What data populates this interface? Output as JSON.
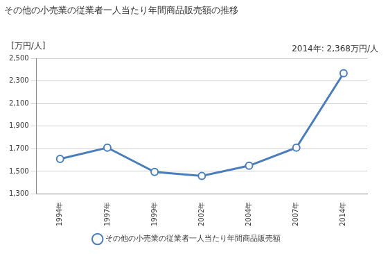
{
  "chart_data": {
    "type": "line",
    "title": "その他の小売業の従業者一人当たり年間商品販売額の推移",
    "y_label": "[万円/人]",
    "annotation": "2014年: 2,368万円/人",
    "categories": [
      "1994年",
      "1997年",
      "1999年",
      "2002年",
      "2004年",
      "2007年",
      "2014年"
    ],
    "series": [
      {
        "name": "その他の小売業の従業者一人当たり年間商品販売額",
        "color": "#4a7ebb",
        "marker": "circle",
        "values": [
          1610,
          1710,
          1495,
          1460,
          1550,
          1710,
          2368
        ]
      }
    ],
    "ylim": [
      1300,
      2500
    ],
    "yticks": [
      {
        "value": 1300,
        "label": "1,300"
      },
      {
        "value": 1500,
        "label": "1,500"
      },
      {
        "value": 1700,
        "label": "1,700"
      },
      {
        "value": 1900,
        "label": "1,900"
      },
      {
        "value": 2100,
        "label": "2,100"
      },
      {
        "value": 2300,
        "label": "2,300"
      },
      {
        "value": 2500,
        "label": "2,500"
      }
    ],
    "grid": true,
    "legend": "bottom"
  }
}
